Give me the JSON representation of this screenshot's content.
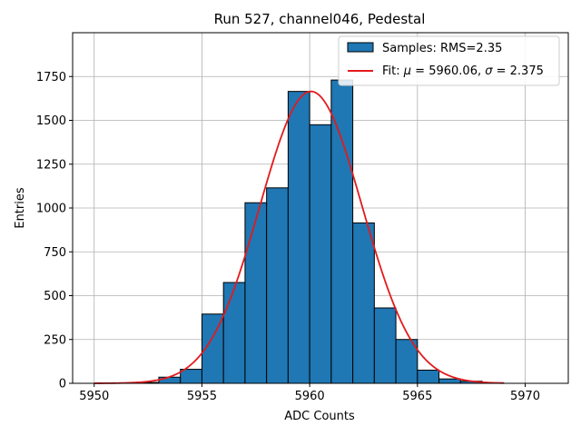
{
  "chart_data": {
    "type": "bar",
    "title": "Run 527, channel046, Pedestal",
    "xlabel": "ADC Counts",
    "ylabel": "Entries",
    "xlim": [
      5949,
      5972
    ],
    "ylim": [
      0,
      2000
    ],
    "xticks": [
      5950,
      5955,
      5960,
      5965,
      5970
    ],
    "yticks": [
      0,
      250,
      500,
      750,
      1000,
      1250,
      1500,
      1750
    ],
    "grid": true,
    "legend_position": "top-right",
    "bar_color": "#1f77b4",
    "fit_color": "#e31a1c",
    "histogram": {
      "name": "Samples: RMS=2.35",
      "bin_width": 1,
      "bins": [
        {
          "x": 5950,
          "count": 0
        },
        {
          "x": 5951,
          "count": 0
        },
        {
          "x": 5952,
          "count": 5
        },
        {
          "x": 5953,
          "count": 35
        },
        {
          "x": 5954,
          "count": 80
        },
        {
          "x": 5955,
          "count": 395
        },
        {
          "x": 5956,
          "count": 575
        },
        {
          "x": 5957,
          "count": 1030
        },
        {
          "x": 5958,
          "count": 1115
        },
        {
          "x": 5959,
          "count": 1665
        },
        {
          "x": 5960,
          "count": 1475
        },
        {
          "x": 5961,
          "count": 1730
        },
        {
          "x": 5962,
          "count": 915
        },
        {
          "x": 5963,
          "count": 430
        },
        {
          "x": 5964,
          "count": 250
        },
        {
          "x": 5965,
          "count": 75
        },
        {
          "x": 5966,
          "count": 25
        },
        {
          "x": 5967,
          "count": 12
        },
        {
          "x": 5968,
          "count": 3
        }
      ]
    },
    "fit": {
      "label_prefix": "Fit: ",
      "mu_symbol": "μ",
      "mu_text": " = 5960.06, ",
      "sigma_symbol": "σ",
      "sigma_text": " = 2.375",
      "mu": 5960.06,
      "sigma": 2.375,
      "amplitude": 1665,
      "x_range": [
        5950,
        5969
      ]
    }
  }
}
